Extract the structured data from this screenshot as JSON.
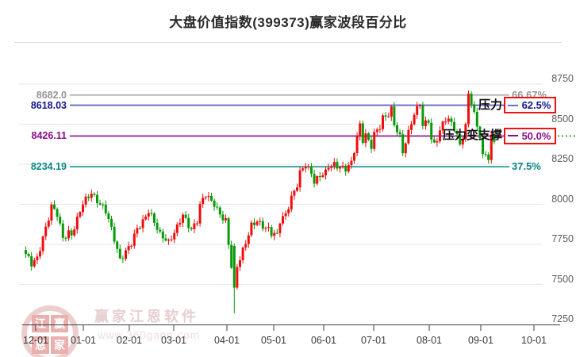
{
  "title": "大盘价值指数(399373)赢家波段百分比",
  "watermark": {
    "brand": "赢家江恩软件",
    "url": "www.360gann.com",
    "logo_chars": [
      "江",
      "赢",
      "恩",
      "家"
    ]
  },
  "chart_data": {
    "type": "candlestick",
    "title": "大盘价值指数(399373)赢家波段百分比",
    "grid": true,
    "legend": "none",
    "x_axis": {
      "tick_labels": [
        "12-01",
        "01-01",
        "02-01",
        "03-01",
        "04-01",
        "05-01",
        "06-01",
        "07-01",
        "08-01",
        "09-01",
        "10-01"
      ]
    },
    "y_axis": {
      "tick_labels": [
        "8750",
        "8500",
        "8250",
        "8000",
        "7750",
        "7500",
        "7250"
      ],
      "min": 7250,
      "max": 8750
    },
    "colors": {
      "up": "#f20d0d",
      "down": "#099909",
      "grid": "#e6e6e6",
      "axis": "#3c3c3c",
      "box_border": "#f01212",
      "support_dotted": "#0aa50a",
      "title": "#2b2b2b"
    },
    "levels": [
      {
        "price": 8682.0,
        "price_label": "8682.0",
        "pct_label": "66.67%",
        "color": "#95959d",
        "line_color": "#b9b9bd",
        "line_width": 2,
        "boxed": false,
        "note": ""
      },
      {
        "price": 8618.03,
        "price_label": "8618.03",
        "pct_label": "62.5%",
        "color": "#14148e",
        "line_color": "#6f6fc4",
        "line_width": 2,
        "boxed": true,
        "note": "压力"
      },
      {
        "price": 8426.11,
        "price_label": "8426.11",
        "pct_label": "50.0%",
        "color": "#8c0a8c",
        "line_color": "#8c0a8c",
        "line_width": 1.6,
        "boxed": true,
        "note": "压力变支撑"
      },
      {
        "price": 8234.19,
        "price_label": "8234.19",
        "pct_label": "37.5%",
        "color": "#0c8585",
        "line_color": "#12918d",
        "line_width": 1.6,
        "boxed": false,
        "note": ""
      }
    ],
    "series": {
      "name": "price",
      "candle_count": 165,
      "path_waypoints": [
        [
          0,
          7690
        ],
        [
          2,
          7620
        ],
        [
          4,
          7660
        ],
        [
          6,
          7800
        ],
        [
          8,
          7920
        ],
        [
          9,
          7985
        ],
        [
          11,
          7930
        ],
        [
          13,
          7790
        ],
        [
          15,
          7830
        ],
        [
          16,
          7815
        ],
        [
          18,
          7900
        ],
        [
          20,
          8000
        ],
        [
          23,
          8080
        ],
        [
          24,
          8050
        ],
        [
          26,
          8000
        ],
        [
          28,
          7950
        ],
        [
          29,
          7900
        ],
        [
          31,
          7790
        ],
        [
          33,
          7660
        ],
        [
          35,
          7700
        ],
        [
          37,
          7750
        ],
        [
          39,
          7850
        ],
        [
          41,
          7900
        ],
        [
          43,
          7960
        ],
        [
          45,
          7880
        ],
        [
          47,
          7810
        ],
        [
          49,
          7790
        ],
        [
          50,
          7770
        ],
        [
          53,
          7850
        ],
        [
          55,
          7930
        ],
        [
          56,
          7900
        ],
        [
          58,
          7850
        ],
        [
          60,
          7900
        ],
        [
          61,
          7990
        ],
        [
          63,
          8055
        ],
        [
          65,
          8020
        ],
        [
          66,
          8010
        ],
        [
          68,
          7940
        ],
        [
          70,
          7890
        ],
        [
          71,
          7740
        ],
        [
          73,
          7480
        ],
        [
          74,
          7620
        ],
        [
          76,
          7720
        ],
        [
          78,
          7810
        ],
        [
          79,
          7860
        ],
        [
          81,
          7890
        ],
        [
          83,
          7870
        ],
        [
          85,
          7850
        ],
        [
          86,
          7820
        ],
        [
          88,
          7800
        ],
        [
          89,
          7890
        ],
        [
          91,
          7940
        ],
        [
          93,
          8050
        ],
        [
          95,
          8120
        ],
        [
          96,
          8190
        ],
        [
          98,
          8240
        ],
        [
          100,
          8200
        ],
        [
          101,
          8150
        ],
        [
          103,
          8180
        ],
        [
          105,
          8190
        ],
        [
          106,
          8230
        ],
        [
          108,
          8250
        ],
        [
          110,
          8240
        ],
        [
          112,
          8220
        ],
        [
          114,
          8250
        ],
        [
          115,
          8330
        ],
        [
          117,
          8500
        ],
        [
          118,
          8410
        ],
        [
          119,
          8440
        ],
        [
          121,
          8360
        ],
        [
          122,
          8430
        ],
        [
          124,
          8480
        ],
        [
          125,
          8540
        ],
        [
          127,
          8570
        ],
        [
          128,
          8600
        ],
        [
          129,
          8500
        ],
        [
          131,
          8410
        ],
        [
          132,
          8320
        ],
        [
          134,
          8450
        ],
        [
          135,
          8520
        ],
        [
          136,
          8570
        ],
        [
          138,
          8630
        ],
        [
          139,
          8480
        ],
        [
          141,
          8520
        ],
        [
          142,
          8400
        ],
        [
          143,
          8380
        ],
        [
          145,
          8460
        ],
        [
          146,
          8510
        ],
        [
          147,
          8530
        ],
        [
          149,
          8500
        ],
        [
          150,
          8470
        ],
        [
          152,
          8380
        ],
        [
          153,
          8430
        ],
        [
          154,
          8490
        ],
        [
          155,
          8690
        ],
        [
          156,
          8630
        ],
        [
          157,
          8550
        ],
        [
          159,
          8420
        ],
        [
          160,
          8300
        ],
        [
          161,
          8330
        ],
        [
          162,
          8290
        ],
        [
          163,
          8420
        ],
        [
          164,
          8400
        ]
      ],
      "specials": {
        "73": {
          "open": 7740,
          "close": 7480,
          "low": 7320
        },
        "155": {
          "open": 8500,
          "close": 8690,
          "high": 8710
        }
      }
    }
  }
}
